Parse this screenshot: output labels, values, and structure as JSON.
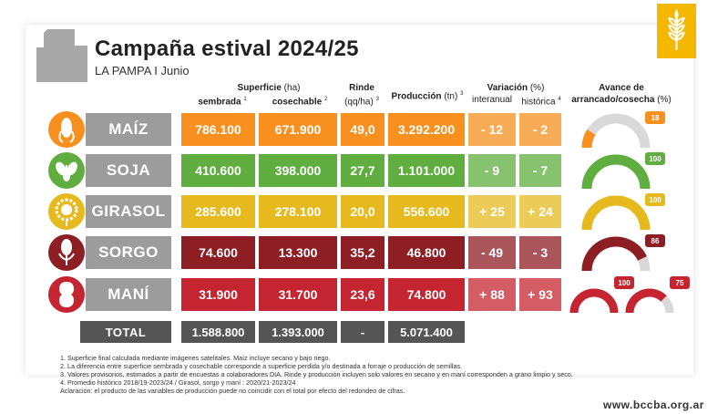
{
  "header": {
    "title": "Campaña estival 2024/25",
    "subtitle": "LA PAMPA I Junio"
  },
  "columns": {
    "superficie_label": "Superficie",
    "superficie_unit": "(ha)",
    "sembrada": "sembrada",
    "sembrada_sup": "1",
    "cosechable": "cosechable",
    "cosechable_sup": "2",
    "rinde": "Rinde",
    "rinde_unit": "(qq/ha)",
    "rinde_sup": "3",
    "produccion": "Producción",
    "produccion_unit": "(tn)",
    "produccion_sup": "3",
    "variacion": "Variación",
    "variacion_unit": "(%)",
    "interanual": "interanual",
    "historica": "histórica",
    "historica_sup": "4",
    "avance_line1": "Avance de",
    "avance_line2": "arrancado/cosecha",
    "avance_unit": "(%)"
  },
  "crops": [
    {
      "name": "MAÍZ",
      "icon": "corn-icon",
      "sembrada": "786.100",
      "cosechable": "671.900",
      "rinde": "49,0",
      "produccion": "3.292.200",
      "interanual": "- 12",
      "historica": "- 2",
      "avance": 18,
      "avance_label": "18",
      "color": "#f7901e",
      "icon_color": "#f7901e"
    },
    {
      "name": "SOJA",
      "icon": "soy-icon",
      "sembrada": "410.600",
      "cosechable": "398.000",
      "rinde": "27,7",
      "produccion": "1.101.000",
      "interanual": "- 9",
      "historica": "- 7",
      "avance": 100,
      "avance_label": "100",
      "color": "#5fae3f",
      "icon_color": "#5fae3f"
    },
    {
      "name": "GIRASOL",
      "icon": "sunflower-icon",
      "sembrada": "285.600",
      "cosechable": "278.100",
      "rinde": "20,0",
      "produccion": "556.600",
      "interanual": "+ 25",
      "historica": "+ 24",
      "avance": 100,
      "avance_label": "100",
      "color": "#e6b91e",
      "icon_color": "#e6b91e"
    },
    {
      "name": "SORGO",
      "icon": "sorghum-icon",
      "sembrada": "74.600",
      "cosechable": "13.300",
      "rinde": "35,2",
      "produccion": "46.800",
      "interanual": "- 49",
      "historica": "- 3",
      "avance": 86,
      "avance_label": "86",
      "color": "#8d1e24",
      "icon_color": "#8d1e24"
    },
    {
      "name": "MANÍ",
      "icon": "peanut-icon",
      "sembrada": "31.900",
      "cosechable": "31.700",
      "rinde": "23,6",
      "produccion": "74.800",
      "interanual": "+ 88",
      "historica": "+ 93",
      "avance": 100,
      "avance_label": "100",
      "avance2": 75,
      "avance2_label": "75",
      "color": "#c52530",
      "icon_color": "#c52530"
    }
  ],
  "total": {
    "label": "TOTAL",
    "sembrada": "1.588.800",
    "cosechable": "1.393.000",
    "rinde": "-",
    "produccion": "5.071.400"
  },
  "notes": [
    "1. Superficie final calculada mediante imágenes satelitales. Maíz incluye secano y bajo riego.",
    "2. La diferencia entre superficie sembrada y cosechable corresponde a superficie perdida y/o destinada a forraje o producción de semillas.",
    "3. Valores provisorios, estimados a partir de encuestas a colaboradores DIA.  Rinde y producción incluyen solo valores en secano y en maní corresponden a grano limpio y seco.",
    "4. Promedio histórico 2018/19-2023/24 / Girasol, sorgo y maní : 2020/21-2023/24",
    "Aclaración: el producto de las variables de producción puede no coincidir con el total por efecto del redondeo de cifras."
  ],
  "footer": {
    "url": "www.bccba.org.ar"
  },
  "colors": {
    "logo": "#f5b800",
    "name_bg": "#9c9c9c",
    "total_bg": "#555555",
    "gauge_track": "#d9d9d9"
  }
}
